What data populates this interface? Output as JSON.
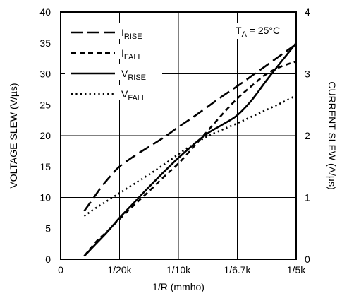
{
  "chart_data": {
    "type": "line",
    "xlabel": "1/R (mmho)",
    "ylabel": "VOLTAGE SLEW (V/µs)",
    "y2label": "CURRENT SLEW (A/µs)",
    "xlim": [
      0,
      4
    ],
    "ylim": [
      0,
      40
    ],
    "y2lim": [
      0,
      4
    ],
    "x_ticks": [
      {
        "value": 0,
        "label": "0"
      },
      {
        "value": 1,
        "label": "1/20k"
      },
      {
        "value": 2,
        "label": "1/10k"
      },
      {
        "value": 3,
        "label": "1/6.7k"
      },
      {
        "value": 4,
        "label": "1/5k"
      }
    ],
    "y_ticks": [
      {
        "value": 0,
        "label": "0"
      },
      {
        "value": 5,
        "label": "5"
      },
      {
        "value": 10,
        "label": "10"
      },
      {
        "value": 15,
        "label": "15"
      },
      {
        "value": 20,
        "label": "20"
      },
      {
        "value": 25,
        "label": "25"
      },
      {
        "value": 30,
        "label": "30"
      },
      {
        "value": 35,
        "label": "35"
      },
      {
        "value": 40,
        "label": "40"
      }
    ],
    "y2_ticks": [
      {
        "value": 0,
        "label": "0"
      },
      {
        "value": 1,
        "label": "1"
      },
      {
        "value": 2,
        "label": "2"
      },
      {
        "value": 3,
        "label": "3"
      },
      {
        "value": 4,
        "label": "4"
      }
    ],
    "annotation": {
      "main": "T",
      "sub": "A",
      "rest": " = 25°C"
    },
    "grid": true,
    "legend_position": "top-left",
    "series": [
      {
        "name_main": "I",
        "name_sub": "RISE",
        "style": "longdash",
        "axis": "right",
        "x": [
          0.4,
          0.55,
          0.7,
          0.85,
          1.0,
          1.25,
          1.5,
          1.75,
          2.0,
          2.25,
          2.5,
          2.75,
          3.0,
          3.25,
          3.5,
          3.75,
          4.0
        ],
        "y": [
          0.78,
          0.98,
          1.18,
          1.35,
          1.5,
          1.67,
          1.82,
          1.97,
          2.14,
          2.3,
          2.47,
          2.64,
          2.8,
          2.97,
          3.14,
          3.31,
          3.48
        ]
      },
      {
        "name_main": "I",
        "name_sub": "FALL",
        "style": "shortdash",
        "axis": "right",
        "x": [
          0.4,
          0.6,
          0.8,
          1.0,
          1.25,
          1.5,
          1.75,
          2.0,
          2.25,
          2.5,
          2.75,
          3.0,
          3.25,
          3.5,
          3.75,
          4.0
        ],
        "y": [
          0.05,
          0.28,
          0.46,
          0.65,
          0.88,
          1.1,
          1.33,
          1.55,
          1.81,
          2.08,
          2.35,
          2.6,
          2.81,
          3.0,
          3.12,
          3.2
        ]
      },
      {
        "name_main": "V",
        "name_sub": "RISE",
        "style": "solid",
        "axis": "left",
        "x": [
          0.4,
          0.6,
          0.8,
          1.0,
          1.25,
          1.5,
          1.75,
          2.0,
          2.25,
          2.5,
          2.75,
          3.0,
          3.25,
          3.5,
          3.75,
          4.0
        ],
        "y": [
          0.5,
          2.5,
          4.5,
          6.7,
          9.2,
          11.7,
          14.1,
          16.4,
          18.5,
          20.4,
          21.8,
          23.3,
          25.8,
          29.0,
          32.0,
          35.0
        ]
      },
      {
        "name_main": "V",
        "name_sub": "FALL",
        "style": "dotted",
        "axis": "left",
        "x": [
          0.4,
          0.6,
          0.8,
          1.0,
          1.25,
          1.5,
          1.75,
          2.0,
          2.25,
          2.5,
          2.75,
          3.0,
          3.25,
          3.5,
          3.75,
          4.0
        ],
        "y": [
          7.0,
          8.3,
          9.5,
          10.7,
          12.2,
          13.7,
          15.3,
          17.0,
          18.6,
          19.9,
          21.0,
          22.0,
          23.1,
          24.2,
          25.3,
          26.5
        ]
      }
    ]
  }
}
